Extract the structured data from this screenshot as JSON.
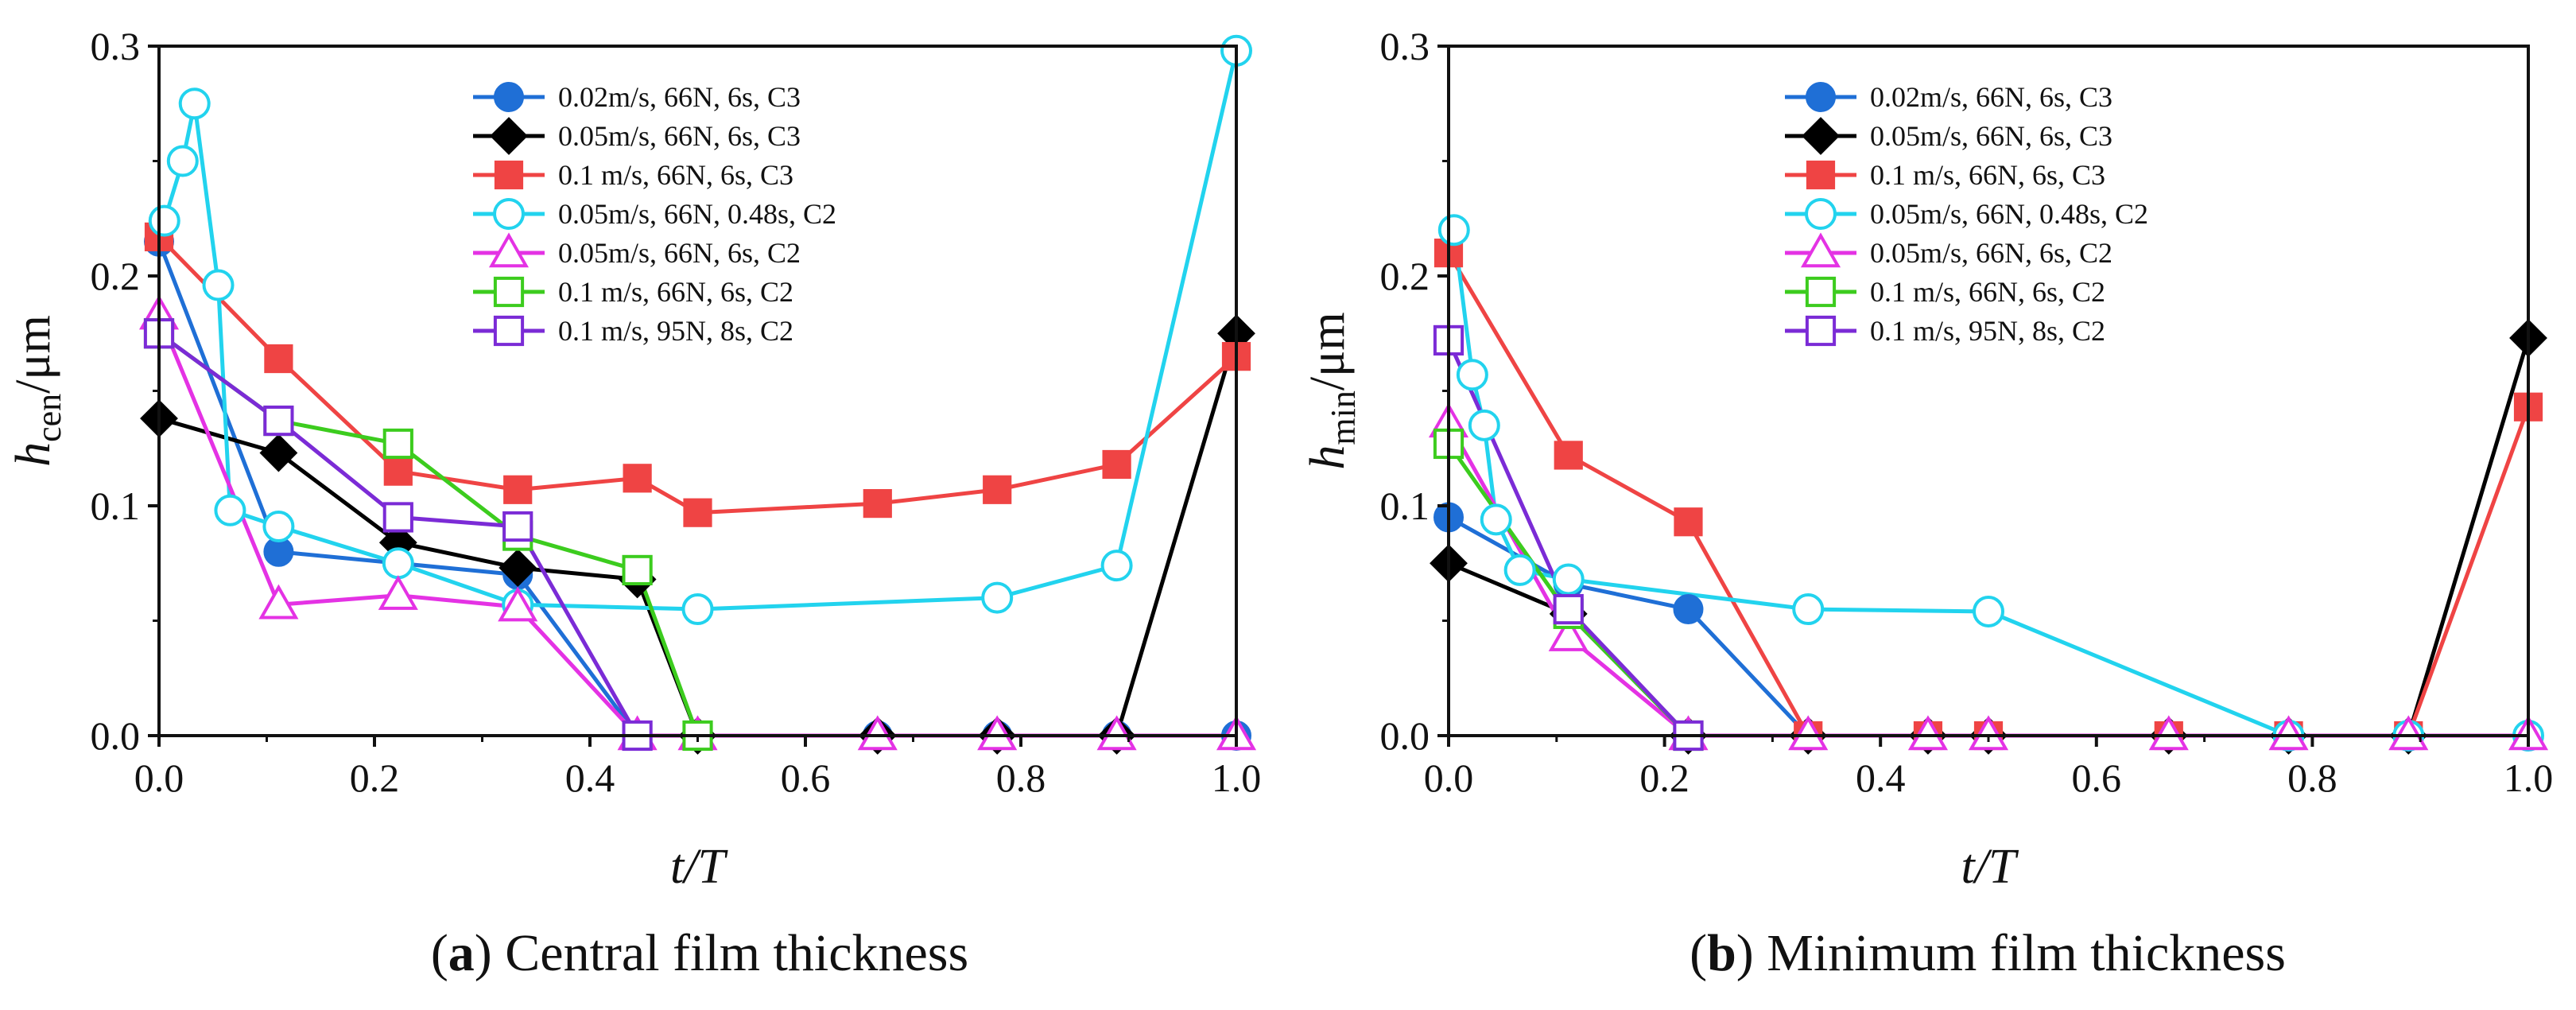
{
  "chart_data": [
    {
      "type": "line",
      "panel": "a",
      "caption_letter": "a",
      "caption_text": "Central film thickness",
      "xlabel": "t/T",
      "ylabel_main": "h",
      "ylabel_sub": "cen",
      "ylabel_unit": "/μm",
      "xlim": [
        0,
        1
      ],
      "ylim": [
        0,
        0.3
      ],
      "xticks": [
        "0.0",
        "0.2",
        "0.4",
        "0.6",
        "0.8",
        "1.0"
      ],
      "yticks": [
        "0.0",
        "0.1",
        "0.2",
        "0.3"
      ],
      "legend_position": "top-right",
      "series": [
        {
          "name": "0.02m/s, 66N, 6s,   C3",
          "color": "#1f6fd6",
          "marker": "circle",
          "filled": true,
          "x": [
            0,
            0.111,
            0.222,
            0.333,
            0.444,
            0.5,
            0.667,
            0.778,
            0.889,
            1.0
          ],
          "y": [
            0.215,
            0.08,
            0.075,
            0.07,
            0,
            0,
            0,
            0,
            0,
            0
          ]
        },
        {
          "name": "0.05m/s, 66N, 6s,   C3",
          "color": "#000000",
          "marker": "diamond",
          "filled": true,
          "x": [
            0,
            0.111,
            0.222,
            0.333,
            0.444,
            0.5,
            0.667,
            0.778,
            0.889,
            1.0
          ],
          "y": [
            0.138,
            0.123,
            0.084,
            0.073,
            0.068,
            0,
            0,
            0,
            0,
            0.175
          ]
        },
        {
          "name": "0.1 m/s, 66N, 6s,   C3",
          "color": "#ef4444",
          "marker": "square",
          "filled": true,
          "x": [
            0,
            0.111,
            0.222,
            0.333,
            0.444,
            0.5,
            0.667,
            0.778,
            0.889,
            1.0
          ],
          "y": [
            0.217,
            0.164,
            0.115,
            0.107,
            0.112,
            0.097,
            0.101,
            0.107,
            0.118,
            0.165
          ]
        },
        {
          "name": "0.05m/s, 66N, 0.48s, C2",
          "color": "#22d3ee",
          "marker": "circle",
          "filled": false,
          "x": [
            0.005,
            0.022,
            0.033,
            0.055,
            0.066,
            0.111,
            0.222,
            0.333,
            0.5,
            0.778,
            0.889,
            1.0
          ],
          "y": [
            0.224,
            0.25,
            0.275,
            0.196,
            0.098,
            0.091,
            0.075,
            0.057,
            0.055,
            0.06,
            0.074,
            0.298
          ]
        },
        {
          "name": "0.05m/s, 66N, 6s,   C2",
          "color": "#e432e4",
          "marker": "triangle",
          "filled": false,
          "x": [
            0,
            0.111,
            0.222,
            0.333,
            0.444,
            0.5,
            0.667,
            0.778,
            0.889,
            1.0
          ],
          "y": [
            0.183,
            0.057,
            0.061,
            0.056,
            0,
            0,
            0,
            0,
            0,
            0
          ]
        },
        {
          "name": "0.1 m/s, 66N, 6s,   C2",
          "color": "#3ccc1e",
          "marker": "square",
          "filled": false,
          "x": [
            0,
            0.111,
            0.222,
            0.333,
            0.444,
            0.5
          ],
          "y": [
            0.175,
            0.137,
            0.127,
            0.087,
            0.072,
            0
          ]
        },
        {
          "name": "0.1 m/s, 95N, 8s,   C2",
          "color": "#7b2bd6",
          "marker": "square",
          "filled": false,
          "x": [
            0,
            0.111,
            0.222,
            0.333,
            0.444
          ],
          "y": [
            0.175,
            0.137,
            0.095,
            0.091,
            0
          ]
        }
      ]
    },
    {
      "type": "line",
      "panel": "b",
      "caption_letter": "b",
      "caption_text": "Minimum film thickness",
      "xlabel": "t/T",
      "ylabel_main": "h",
      "ylabel_sub": "min",
      "ylabel_unit": "/μm",
      "xlim": [
        0,
        1
      ],
      "ylim": [
        0,
        0.3
      ],
      "xticks": [
        "0.0",
        "0.2",
        "0.4",
        "0.6",
        "0.8",
        "1.0"
      ],
      "yticks": [
        "0.0",
        "0.1",
        "0.2",
        "0.3"
      ],
      "legend_position": "top-right",
      "series": [
        {
          "name": "0.02m/s, 66N, 6s,   C3",
          "color": "#1f6fd6",
          "marker": "circle",
          "filled": true,
          "x": [
            0,
            0.111,
            0.222,
            0.333,
            0.444,
            0.5,
            0.667,
            0.778,
            0.889,
            1.0
          ],
          "y": [
            0.095,
            0.066,
            0.055,
            0,
            0,
            0,
            0,
            0,
            0,
            0
          ]
        },
        {
          "name": "0.05m/s, 66N, 6s,   C3",
          "color": "#000000",
          "marker": "diamond",
          "filled": true,
          "x": [
            0,
            0.111,
            0.222,
            0.333,
            0.444,
            0.5,
            0.667,
            0.778,
            0.889,
            1.0
          ],
          "y": [
            0.075,
            0.053,
            0,
            0,
            0,
            0,
            0,
            0,
            0,
            0.173
          ]
        },
        {
          "name": "0.1 m/s, 66N, 6s,   C3",
          "color": "#ef4444",
          "marker": "square",
          "filled": true,
          "x": [
            0,
            0.111,
            0.222,
            0.333,
            0.444,
            0.5,
            0.667,
            0.778,
            0.889,
            1.0
          ],
          "y": [
            0.21,
            0.122,
            0.093,
            0,
            0,
            0,
            0,
            0,
            0,
            0.143
          ]
        },
        {
          "name": "0.05m/s, 66N, 0.48s, C2",
          "color": "#22d3ee",
          "marker": "circle",
          "filled": false,
          "x": [
            0.005,
            0.022,
            0.033,
            0.044,
            0.066,
            0.111,
            0.333,
            0.5,
            0.778,
            0.889,
            1.0
          ],
          "y": [
            0.22,
            0.157,
            0.135,
            0.094,
            0.072,
            0.068,
            0.055,
            0.054,
            0,
            0,
            0
          ]
        },
        {
          "name": "0.05m/s, 66N, 6s,   C2",
          "color": "#e432e4",
          "marker": "triangle",
          "filled": false,
          "x": [
            0,
            0.111,
            0.222,
            0.333,
            0.444,
            0.5,
            0.667,
            0.778,
            0.889,
            1.0
          ],
          "y": [
            0.136,
            0.043,
            0,
            0,
            0,
            0,
            0,
            0,
            0,
            0
          ]
        },
        {
          "name": "0.1 m/s, 66N, 6s,   C2",
          "color": "#3ccc1e",
          "marker": "square",
          "filled": false,
          "x": [
            0,
            0.111,
            0.222
          ],
          "y": [
            0.127,
            0.053,
            0
          ]
        },
        {
          "name": "0.1 m/s, 95N, 8s,   C2",
          "color": "#7b2bd6",
          "marker": "square",
          "filled": false,
          "x": [
            0,
            0.111,
            0.222
          ],
          "y": [
            0.172,
            0.055,
            0
          ]
        }
      ]
    }
  ]
}
